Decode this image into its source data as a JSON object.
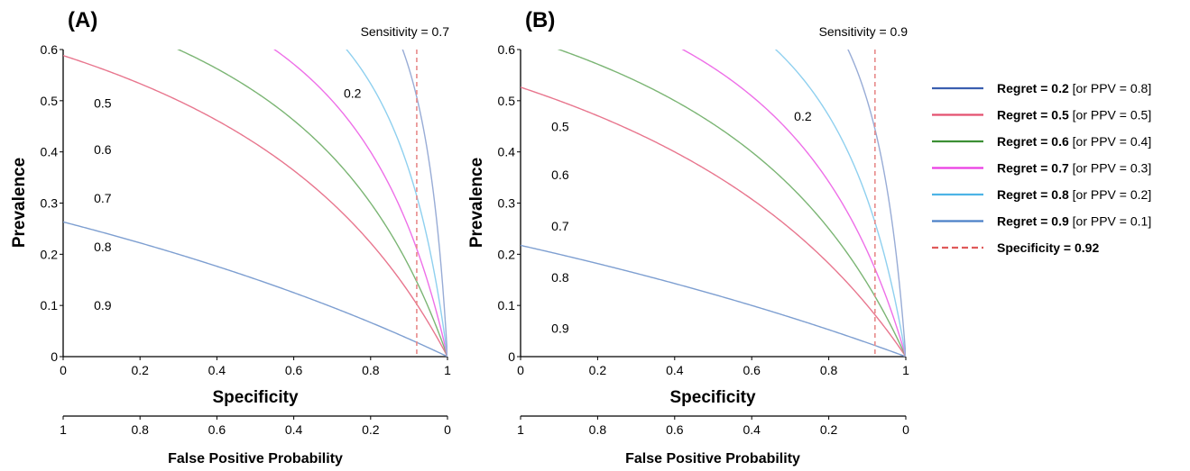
{
  "chart_data": [
    {
      "type": "line",
      "panel_label": "(A)",
      "sensitivity_label": "Sensitivity = 0.7",
      "sensitivity": 0.7,
      "xlabel": "Specificity",
      "ylabel": "Prevalence",
      "secondary_xlabel": "False Positive Probability",
      "xlim": [
        0,
        1
      ],
      "ylim": [
        0,
        0.6
      ],
      "xticks": [
        "0",
        "0.2",
        "0.4",
        "0.6",
        "0.8",
        "1"
      ],
      "yticks": [
        "0",
        "0.1",
        "0.2",
        "0.3",
        "0.4",
        "0.5",
        "0.6"
      ],
      "secondary_xticks": [
        "1",
        "0.8",
        "0.6",
        "0.4",
        "0.2",
        "0"
      ],
      "specificity_line": 0.92,
      "series": [
        {
          "regret": 0.2,
          "label": "0.2",
          "label_pos": [
            0.73,
            0.515
          ],
          "color": "#7e9fd1"
        },
        {
          "regret": 0.5,
          "label": "0.5",
          "label_pos": [
            0.08,
            0.495
          ],
          "color": "#e8768e"
        },
        {
          "regret": 0.6,
          "label": "0.6",
          "label_pos": [
            0.08,
            0.405
          ],
          "color": "#7bb574"
        },
        {
          "regret": 0.7,
          "label": "0.7",
          "label_pos": [
            0.08,
            0.31
          ],
          "color": "#ee6fe8"
        },
        {
          "regret": 0.8,
          "label": "0.8",
          "label_pos": [
            0.08,
            0.215
          ],
          "color": "#8fd0ef"
        },
        {
          "regret": 0.9,
          "label": "0.9",
          "label_pos": [
            0.08,
            0.1
          ],
          "color": "#98acd6"
        }
      ]
    },
    {
      "type": "line",
      "panel_label": "(B)",
      "sensitivity_label": "Sensitivity = 0.9",
      "sensitivity": 0.9,
      "xlabel": "Specificity",
      "ylabel": "Prevalence",
      "secondary_xlabel": "False Positive Probability",
      "xlim": [
        0,
        1
      ],
      "ylim": [
        0,
        0.6
      ],
      "xticks": [
        "0",
        "0.2",
        "0.4",
        "0.6",
        "0.8",
        "1"
      ],
      "yticks": [
        "0",
        "0.1",
        "0.2",
        "0.3",
        "0.4",
        "0.5",
        "0.6"
      ],
      "secondary_xticks": [
        "1",
        "0.8",
        "0.6",
        "0.4",
        "0.2",
        "0"
      ],
      "specificity_line": 0.92,
      "series": [
        {
          "regret": 0.2,
          "label": "0.2",
          "label_pos": [
            0.71,
            0.47
          ],
          "color": "#7e9fd1"
        },
        {
          "regret": 0.5,
          "label": "0.5",
          "label_pos": [
            0.08,
            0.45
          ],
          "color": "#e8768e"
        },
        {
          "regret": 0.6,
          "label": "0.6",
          "label_pos": [
            0.08,
            0.355
          ],
          "color": "#7bb574"
        },
        {
          "regret": 0.7,
          "label": "0.7",
          "label_pos": [
            0.08,
            0.255
          ],
          "color": "#ee6fe8"
        },
        {
          "regret": 0.8,
          "label": "0.8",
          "label_pos": [
            0.08,
            0.155
          ],
          "color": "#8fd0ef"
        },
        {
          "regret": 0.9,
          "label": "0.9",
          "label_pos": [
            0.08,
            0.055
          ],
          "color": "#98acd6"
        }
      ]
    }
  ],
  "legend": {
    "placement": "right",
    "items": [
      {
        "bold": "Regret = 0.2",
        "rest": " [or PPV = 0.8]",
        "color": "#3a5fb0",
        "dashed": false
      },
      {
        "bold": "Regret = 0.5",
        "rest": " [or PPV = 0.5]",
        "color": "#e4506f",
        "dashed": false
      },
      {
        "bold": "Regret = 0.6",
        "rest": " [or PPV = 0.4]",
        "color": "#3c8f34",
        "dashed": false
      },
      {
        "bold": "Regret = 0.7",
        "rest": " [or PPV = 0.3]",
        "color": "#ea3fe4",
        "dashed": false
      },
      {
        "bold": "Regret = 0.8",
        "rest": " [or PPV = 0.2]",
        "color": "#4db4e6",
        "dashed": false
      },
      {
        "bold": "Regret = 0.9",
        "rest": " [or PPV = 0.1]",
        "color": "#4a80c8",
        "dashed": false
      },
      {
        "bold": "Specificity = 0.92",
        "rest": "",
        "color": "#e05a5a",
        "dashed": true
      }
    ]
  }
}
